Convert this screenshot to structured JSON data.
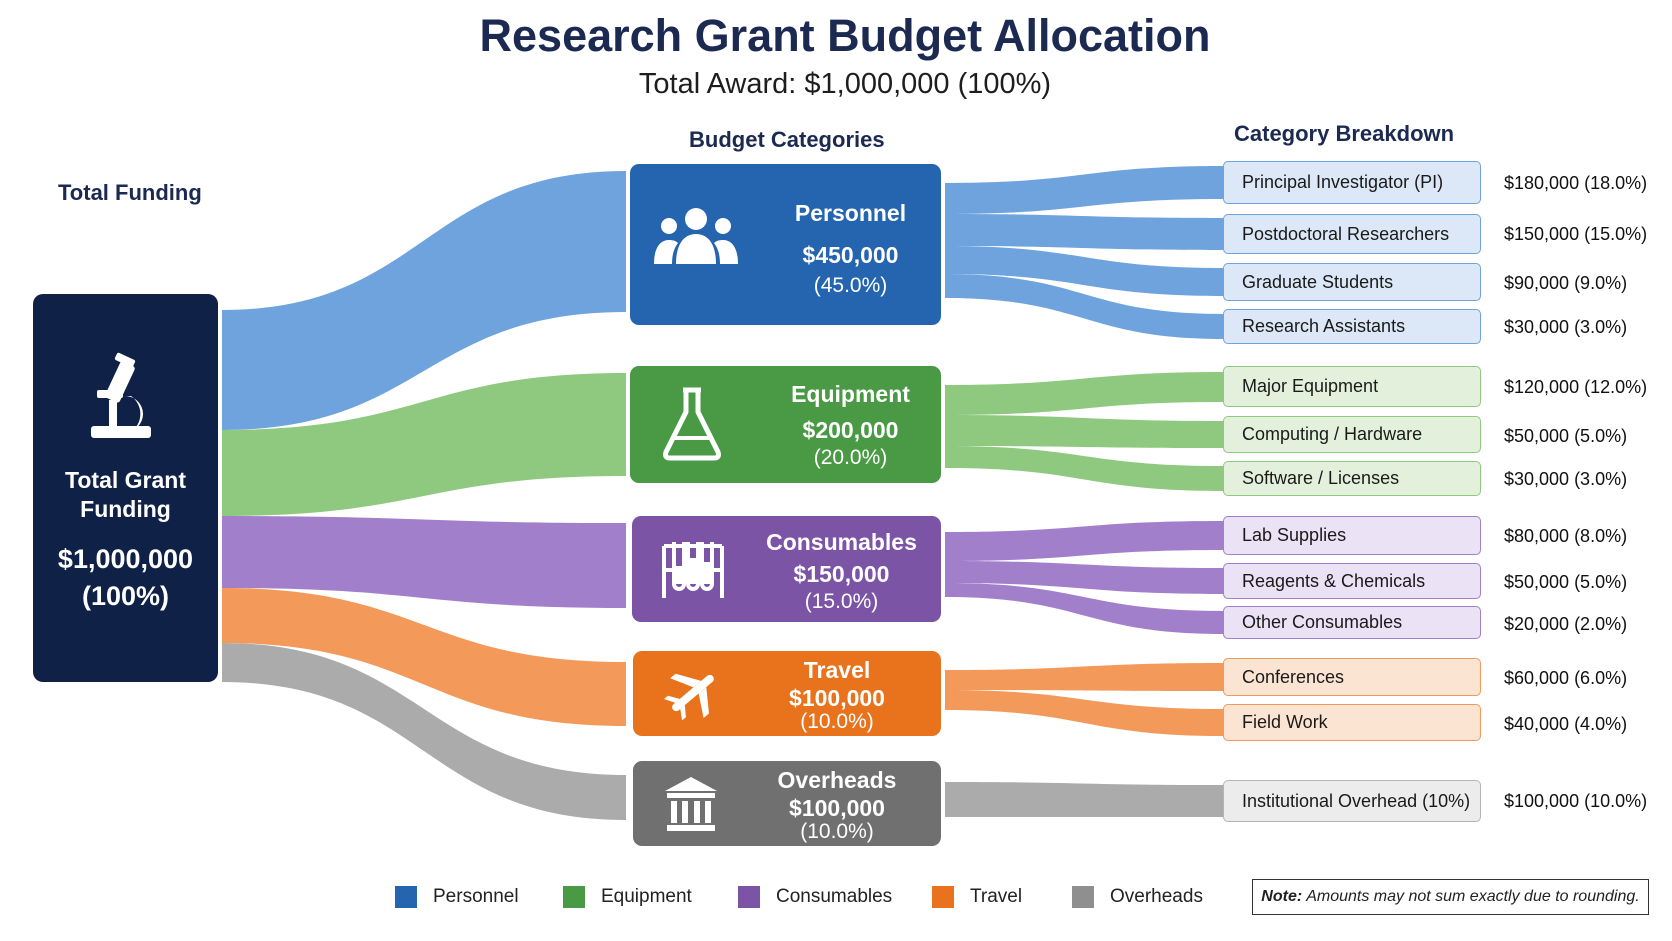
{
  "title": "Research Grant Budget Allocation",
  "subtitle": "Total Award: $1,000,000 (100%)",
  "headers": {
    "left": "Total Funding",
    "middle": "Budget Categories",
    "right": "Category Breakdown"
  },
  "source": {
    "label_line1": "Total Grant",
    "label_line2": "Funding",
    "amount": "$1,000,000",
    "pct": "(100%)",
    "icon": "microscope-icon",
    "color": "#0f2147"
  },
  "categories": [
    {
      "name": "Personnel",
      "amount": "$450,000",
      "pct": "(45.0%)",
      "value": 450000,
      "icon": "people-icon",
      "color": "#2565b0",
      "flow_color": "#6ea3dd",
      "light_color": "#dce8f7",
      "border_color": "#6ea3dd",
      "items": [
        {
          "label": "Principal Investigator (PI)",
          "value_text": "$180,000 (18.0%)",
          "value": 180000
        },
        {
          "label": "Postdoctoral Researchers",
          "value_text": "$150,000 (15.0%)",
          "value": 150000
        },
        {
          "label": "Graduate Students",
          "value_text": "$90,000 (9.0%)",
          "value": 90000
        },
        {
          "label": "Research Assistants",
          "value_text": "$30,000 (3.0%)",
          "value": 30000
        }
      ]
    },
    {
      "name": "Equipment",
      "amount": "$200,000",
      "pct": "(20.0%)",
      "value": 200000,
      "icon": "flask-icon",
      "color": "#4a9a45",
      "flow_color": "#8fc97f",
      "light_color": "#e3f1dc",
      "border_color": "#8fc97f",
      "items": [
        {
          "label": "Major Equipment",
          "value_text": "$120,000 (12.0%)",
          "value": 120000
        },
        {
          "label": "Computing / Hardware",
          "value_text": "$50,000 (5.0%)",
          "value": 50000
        },
        {
          "label": "Software / Licenses",
          "value_text": "$30,000 (3.0%)",
          "value": 30000
        }
      ]
    },
    {
      "name": "Consumables",
      "amount": "$150,000",
      "pct": "(15.0%)",
      "value": 150000,
      "icon": "test-tubes-icon",
      "color": "#7b54a6",
      "flow_color": "#a17fcb",
      "light_color": "#ebe2f5",
      "border_color": "#a17fcb",
      "items": [
        {
          "label": "Lab Supplies",
          "value_text": "$80,000 (8.0%)",
          "value": 80000
        },
        {
          "label": "Reagents & Chemicals",
          "value_text": "$50,000 (5.0%)",
          "value": 50000
        },
        {
          "label": "Other Consumables",
          "value_text": "$20,000 (2.0%)",
          "value": 20000
        }
      ]
    },
    {
      "name": "Travel",
      "amount": "$100,000",
      "pct": "(10.0%)",
      "value": 100000,
      "icon": "airplane-icon",
      "color": "#e8731c",
      "flow_color": "#f3995a",
      "light_color": "#fce4d2",
      "border_color": "#f3995a",
      "items": [
        {
          "label": "Conferences",
          "value_text": "$60,000 (6.0%)",
          "value": 60000
        },
        {
          "label": "Field Work",
          "value_text": "$40,000 (4.0%)",
          "value": 40000
        }
      ]
    },
    {
      "name": "Overheads",
      "amount": "$100,000",
      "pct": "(10.0%)",
      "value": 100000,
      "icon": "institution-icon",
      "color": "#707070",
      "flow_color": "#ababab",
      "light_color": "#ececec",
      "border_color": "#b5b5b5",
      "items": [
        {
          "label": "Institutional Overhead (10%)",
          "value_text": "$100,000 (10.0%)",
          "value": 100000
        }
      ]
    }
  ],
  "legend": [
    {
      "label": "Personnel",
      "color": "#2565b0"
    },
    {
      "label": "Equipment",
      "color": "#4a9a45"
    },
    {
      "label": "Consumables",
      "color": "#7b54a6"
    },
    {
      "label": "Travel",
      "color": "#e8731c"
    },
    {
      "label": "Overheads",
      "color": "#8f8f8f"
    }
  ],
  "note": {
    "prefix": "Note:",
    "text": "Amounts may not sum exactly due to rounding."
  }
}
